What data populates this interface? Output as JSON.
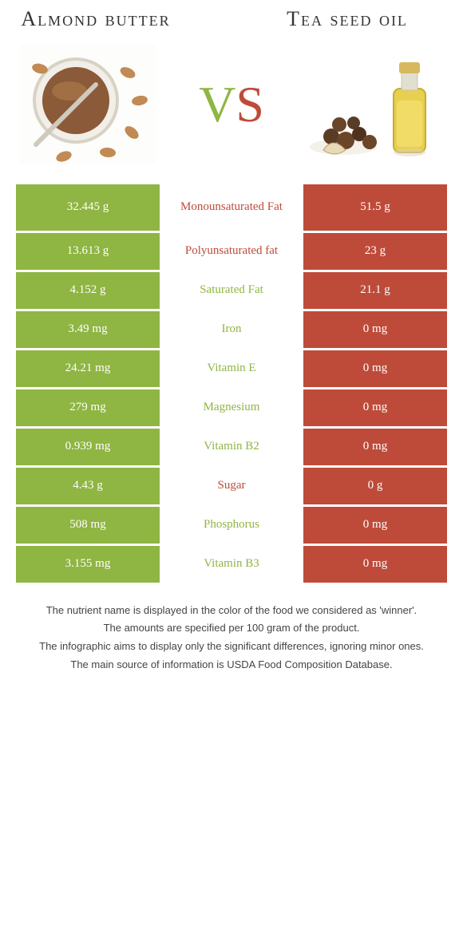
{
  "colors": {
    "food1": "#8fb542",
    "food2": "#be4b3a",
    "cell_text_on_color": "#ffffff",
    "cell_text_mid_default": "#8fb542"
  },
  "food1": {
    "title": "Almond butter"
  },
  "food2": {
    "title": "Tea seed oil"
  },
  "vs": {
    "v": "V",
    "s": "S"
  },
  "table": {
    "rows": [
      {
        "left": "32.445 g",
        "label": "Monounsaturated Fat",
        "right": "51.5 g",
        "winner": "food2",
        "mid_height": 58
      },
      {
        "left": "13.613 g",
        "label": "Polyunsaturated fat",
        "right": "23 g",
        "winner": "food2",
        "mid_height": 46
      },
      {
        "left": "4.152 g",
        "label": "Saturated Fat",
        "right": "21.1 g",
        "winner": "food1",
        "mid_height": 46
      },
      {
        "left": "3.49 mg",
        "label": "Iron",
        "right": "0 mg",
        "winner": "food1",
        "mid_height": 46
      },
      {
        "left": "24.21 mg",
        "label": "Vitamin E",
        "right": "0 mg",
        "winner": "food1",
        "mid_height": 46
      },
      {
        "left": "279 mg",
        "label": "Magnesium",
        "right": "0 mg",
        "winner": "food1",
        "mid_height": 46
      },
      {
        "left": "0.939 mg",
        "label": "Vitamin B2",
        "right": "0 mg",
        "winner": "food1",
        "mid_height": 46
      },
      {
        "left": "4.43 g",
        "label": "Sugar",
        "right": "0 g",
        "winner": "food2",
        "mid_height": 46
      },
      {
        "left": "508 mg",
        "label": "Phosphorus",
        "right": "0 mg",
        "winner": "food1",
        "mid_height": 46
      },
      {
        "left": "3.155 mg",
        "label": "Vitamin B3",
        "right": "0 mg",
        "winner": "food1",
        "mid_height": 46
      }
    ]
  },
  "footnotes": [
    "The nutrient name is displayed in the color of the food we considered as 'winner'.",
    "The amounts are specified per 100 gram of the product.",
    "The infographic aims to display only the significant differences, ignoring minor ones.",
    "The main source of information is USDA Food Composition Database."
  ]
}
